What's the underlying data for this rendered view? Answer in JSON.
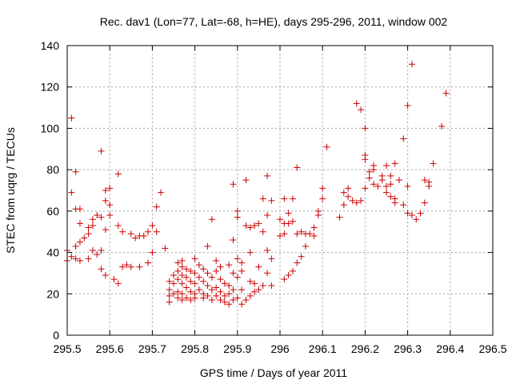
{
  "colors": {
    "points": "#cc0000",
    "grid": "#a0a0a0",
    "axis": "#000000"
  },
  "chart_data": {
    "type": "scatter",
    "title": "Rec. dav1 (Lon=77, Lat=-68, h=HE), days 295-296, 2011, window 002",
    "xlabel": "GPS time / Days of year 2011",
    "ylabel": "STEC from uqrg / TECUs",
    "xlim": [
      295.5,
      296.5
    ],
    "ylim": [
      0,
      140
    ],
    "xticks": [
      "295.5",
      "295.6",
      "295.7",
      "295.8",
      "295.9",
      "296",
      "296.1",
      "296.2",
      "296.3",
      "296.4",
      "296.5"
    ],
    "yticks": [
      "0",
      "20",
      "40",
      "60",
      "80",
      "100",
      "120",
      "140"
    ],
    "grid": true,
    "marker": "plus",
    "points": [
      [
        295.5,
        41
      ],
      [
        295.5,
        36
      ],
      [
        295.51,
        105
      ],
      [
        295.51,
        69
      ],
      [
        295.51,
        38
      ],
      [
        295.52,
        79
      ],
      [
        295.52,
        61
      ],
      [
        295.52,
        43
      ],
      [
        295.52,
        37
      ],
      [
        295.53,
        61
      ],
      [
        295.53,
        54
      ],
      [
        295.53,
        45
      ],
      [
        295.53,
        36
      ],
      [
        295.54,
        47
      ],
      [
        295.55,
        52
      ],
      [
        295.55,
        49
      ],
      [
        295.55,
        37
      ],
      [
        295.56,
        56
      ],
      [
        295.56,
        53
      ],
      [
        295.56,
        41
      ],
      [
        295.57,
        58
      ],
      [
        295.57,
        39
      ],
      [
        295.58,
        89
      ],
      [
        295.58,
        57
      ],
      [
        295.58,
        41
      ],
      [
        295.58,
        32
      ],
      [
        295.59,
        70
      ],
      [
        295.59,
        65
      ],
      [
        295.59,
        51
      ],
      [
        295.59,
        29
      ],
      [
        295.6,
        71
      ],
      [
        295.6,
        63
      ],
      [
        295.6,
        58
      ],
      [
        295.61,
        27
      ],
      [
        295.62,
        78
      ],
      [
        295.62,
        53
      ],
      [
        295.62,
        25
      ],
      [
        295.63,
        50
      ],
      [
        295.63,
        33
      ],
      [
        295.64,
        34
      ],
      [
        295.65,
        49
      ],
      [
        295.65,
        33
      ],
      [
        295.66,
        47
      ],
      [
        295.67,
        48
      ],
      [
        295.67,
        33
      ],
      [
        295.68,
        48
      ],
      [
        295.69,
        50
      ],
      [
        295.69,
        35
      ],
      [
        295.7,
        53
      ],
      [
        295.7,
        40
      ],
      [
        295.71,
        62
      ],
      [
        295.71,
        50
      ],
      [
        295.72,
        69
      ],
      [
        295.73,
        42
      ],
      [
        295.74,
        26
      ],
      [
        295.74,
        22
      ],
      [
        295.74,
        19
      ],
      [
        295.74,
        16
      ],
      [
        295.75,
        29
      ],
      [
        295.75,
        25
      ],
      [
        295.75,
        20
      ],
      [
        295.76,
        35
      ],
      [
        295.76,
        31
      ],
      [
        295.76,
        27
      ],
      [
        295.76,
        21
      ],
      [
        295.76,
        18
      ],
      [
        295.77,
        36
      ],
      [
        295.77,
        33
      ],
      [
        295.77,
        29
      ],
      [
        295.77,
        25
      ],
      [
        295.77,
        20
      ],
      [
        295.77,
        17
      ],
      [
        295.78,
        32
      ],
      [
        295.78,
        28
      ],
      [
        295.78,
        23
      ],
      [
        295.78,
        18
      ],
      [
        295.79,
        31
      ],
      [
        295.79,
        26
      ],
      [
        295.79,
        21
      ],
      [
        295.79,
        17
      ],
      [
        295.8,
        37
      ],
      [
        295.8,
        30
      ],
      [
        295.8,
        25
      ],
      [
        295.8,
        20
      ],
      [
        295.8,
        18
      ],
      [
        295.81,
        34
      ],
      [
        295.81,
        28
      ],
      [
        295.81,
        22
      ],
      [
        295.82,
        32
      ],
      [
        295.82,
        26
      ],
      [
        295.82,
        20
      ],
      [
        295.82,
        18
      ],
      [
        295.83,
        43
      ],
      [
        295.83,
        30
      ],
      [
        295.83,
        24
      ],
      [
        295.83,
        19
      ],
      [
        295.84,
        56
      ],
      [
        295.84,
        28
      ],
      [
        295.84,
        22
      ],
      [
        295.84,
        17
      ],
      [
        295.85,
        36
      ],
      [
        295.85,
        31
      ],
      [
        295.85,
        23
      ],
      [
        295.85,
        19
      ],
      [
        295.86,
        33
      ],
      [
        295.86,
        27
      ],
      [
        295.86,
        21
      ],
      [
        295.86,
        17
      ],
      [
        295.87,
        25
      ],
      [
        295.87,
        19
      ],
      [
        295.87,
        16
      ],
      [
        295.88,
        34
      ],
      [
        295.88,
        24
      ],
      [
        295.88,
        20
      ],
      [
        295.88,
        15
      ],
      [
        295.89,
        73
      ],
      [
        295.89,
        46
      ],
      [
        295.89,
        30
      ],
      [
        295.89,
        22
      ],
      [
        295.89,
        17
      ],
      [
        295.9,
        60
      ],
      [
        295.9,
        57
      ],
      [
        295.9,
        37
      ],
      [
        295.9,
        28
      ],
      [
        295.9,
        18
      ],
      [
        295.91,
        35
      ],
      [
        295.91,
        31
      ],
      [
        295.91,
        22
      ],
      [
        295.91,
        15
      ],
      [
        295.92,
        53
      ],
      [
        295.92,
        75
      ],
      [
        295.92,
        17
      ],
      [
        295.93,
        52
      ],
      [
        295.93,
        40
      ],
      [
        295.93,
        26
      ],
      [
        295.93,
        19
      ],
      [
        295.94,
        53
      ],
      [
        295.94,
        25
      ],
      [
        295.94,
        21
      ],
      [
        295.95,
        54
      ],
      [
        295.95,
        33
      ],
      [
        295.95,
        22
      ],
      [
        295.96,
        66
      ],
      [
        295.96,
        50
      ],
      [
        295.96,
        24
      ],
      [
        295.97,
        77
      ],
      [
        295.97,
        58
      ],
      [
        295.97,
        41
      ],
      [
        295.97,
        30
      ],
      [
        295.98,
        65
      ],
      [
        295.98,
        37
      ],
      [
        295.98,
        24
      ],
      [
        296,
        56
      ],
      [
        296,
        48
      ],
      [
        296.01,
        66
      ],
      [
        296.01,
        54
      ],
      [
        296.01,
        49
      ],
      [
        296.01,
        27
      ],
      [
        296.02,
        59
      ],
      [
        296.02,
        54
      ],
      [
        296.02,
        29
      ],
      [
        296.03,
        66
      ],
      [
        296.03,
        55
      ],
      [
        296.03,
        31
      ],
      [
        296.04,
        81
      ],
      [
        296.04,
        49
      ],
      [
        296.04,
        35
      ],
      [
        296.05,
        50
      ],
      [
        296.05,
        38
      ],
      [
        296.06,
        49
      ],
      [
        296.06,
        43
      ],
      [
        296.07,
        49
      ],
      [
        296.08,
        52
      ],
      [
        296.08,
        48
      ],
      [
        296.09,
        60
      ],
      [
        296.09,
        58
      ],
      [
        296.1,
        71
      ],
      [
        296.1,
        66
      ],
      [
        296.11,
        91
      ],
      [
        296.14,
        57
      ],
      [
        296.15,
        69
      ],
      [
        296.15,
        63
      ],
      [
        296.16,
        71
      ],
      [
        296.16,
        67
      ],
      [
        296.17,
        65
      ],
      [
        296.18,
        112
      ],
      [
        296.18,
        64
      ],
      [
        296.19,
        109
      ],
      [
        296.19,
        65
      ],
      [
        296.2,
        100
      ],
      [
        296.2,
        87
      ],
      [
        296.2,
        85
      ],
      [
        296.2,
        71
      ],
      [
        296.21,
        79
      ],
      [
        296.21,
        76
      ],
      [
        296.22,
        82
      ],
      [
        296.22,
        80
      ],
      [
        296.22,
        73
      ],
      [
        296.23,
        72
      ],
      [
        296.24,
        77
      ],
      [
        296.24,
        75
      ],
      [
        296.25,
        82
      ],
      [
        296.25,
        69
      ],
      [
        296.25,
        72
      ],
      [
        296.26,
        77
      ],
      [
        296.26,
        73
      ],
      [
        296.26,
        67
      ],
      [
        296.27,
        83
      ],
      [
        296.27,
        66
      ],
      [
        296.27,
        64
      ],
      [
        296.28,
        75
      ],
      [
        296.29,
        95
      ],
      [
        296.29,
        63
      ],
      [
        296.3,
        111
      ],
      [
        296.3,
        72
      ],
      [
        296.3,
        59
      ],
      [
        296.31,
        131
      ],
      [
        296.31,
        58
      ],
      [
        296.32,
        56
      ],
      [
        296.33,
        59
      ],
      [
        296.34,
        64
      ],
      [
        296.34,
        75
      ],
      [
        296.35,
        74
      ],
      [
        296.35,
        72
      ],
      [
        296.36,
        83
      ],
      [
        296.38,
        101
      ],
      [
        296.39,
        117
      ]
    ]
  }
}
